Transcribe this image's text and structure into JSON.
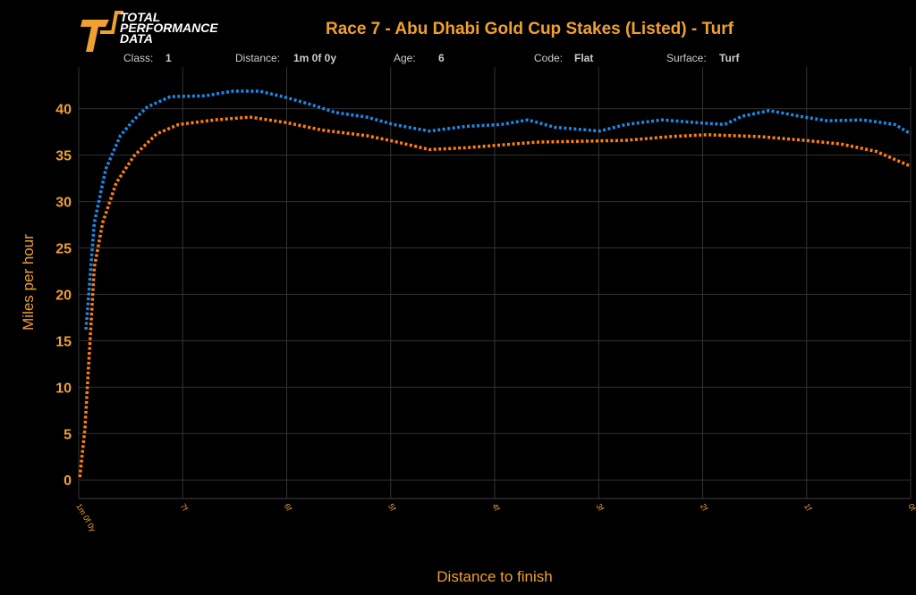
{
  "chart_data": {
    "type": "line",
    "logo": [
      "TOTAL",
      "PERFORMANCE",
      "DATA"
    ],
    "title": "Race 7 - Abu Dhabi Gold Cup Stakes (Listed) - Turf",
    "info": [
      {
        "label": "Class:",
        "value": "1"
      },
      {
        "label": "Distance:",
        "value": "1m 0f 0y"
      },
      {
        "label": "Age:",
        "value": "6"
      },
      {
        "label": "Code:",
        "value": "Flat"
      },
      {
        "label": "Surface:",
        "value": "Turf"
      }
    ],
    "xlabel": "Distance to finish",
    "ylabel": "Miles per hour",
    "xlim": [
      8,
      0
    ],
    "ylim": [
      -2,
      44.5
    ],
    "xticks": [
      {
        "value": 8,
        "label": "1m 0f 0y"
      },
      {
        "value": 7,
        "label": "7f"
      },
      {
        "value": 6,
        "label": "6f"
      },
      {
        "value": 5,
        "label": "5f"
      },
      {
        "value": 4,
        "label": "4f"
      },
      {
        "value": 3,
        "label": "3f"
      },
      {
        "value": 2,
        "label": "2f"
      },
      {
        "value": 1,
        "label": "1f"
      },
      {
        "value": 0,
        "label": "0f"
      }
    ],
    "yticks": [
      0,
      5,
      10,
      15,
      20,
      25,
      30,
      35,
      40
    ],
    "grid": true,
    "series": [
      {
        "color": "#1e88e5",
        "x": [
          7.93,
          7.85,
          7.74,
          7.6,
          7.47,
          7.34,
          7.12,
          6.78,
          6.52,
          6.26,
          6.0,
          5.75,
          5.53,
          5.23,
          4.97,
          4.63,
          4.28,
          3.94,
          3.68,
          3.42,
          2.99,
          2.74,
          2.39,
          2.05,
          1.79,
          1.62,
          1.36,
          1.02,
          0.8,
          0.46,
          0.15,
          0
        ],
        "values": [
          16.2,
          27.7,
          33.5,
          37.1,
          38.8,
          40.2,
          41.3,
          41.4,
          41.9,
          41.9,
          41.2,
          40.4,
          39.6,
          39.1,
          38.3,
          37.6,
          38.1,
          38.3,
          38.8,
          38.0,
          37.6,
          38.3,
          38.8,
          38.5,
          38.3,
          39.2,
          39.8,
          39.1,
          38.7,
          38.8,
          38.3,
          37.3
        ]
      },
      {
        "color": "#ff7f0e",
        "x": [
          7.99,
          7.94,
          7.85,
          7.77,
          7.64,
          7.47,
          7.25,
          7.04,
          6.69,
          6.35,
          6.0,
          5.66,
          5.23,
          4.97,
          4.63,
          4.28,
          3.94,
          3.6,
          3.17,
          2.74,
          2.31,
          1.96,
          1.45,
          1.02,
          0.67,
          0.33,
          0
        ],
        "values": [
          0.3,
          5.6,
          22.9,
          27.7,
          32.0,
          34.9,
          37.3,
          38.3,
          38.8,
          39.1,
          38.5,
          37.7,
          37.1,
          36.5,
          35.6,
          35.8,
          36.1,
          36.4,
          36.5,
          36.6,
          37.0,
          37.2,
          37.0,
          36.6,
          36.2,
          35.4,
          33.8
        ]
      }
    ]
  }
}
